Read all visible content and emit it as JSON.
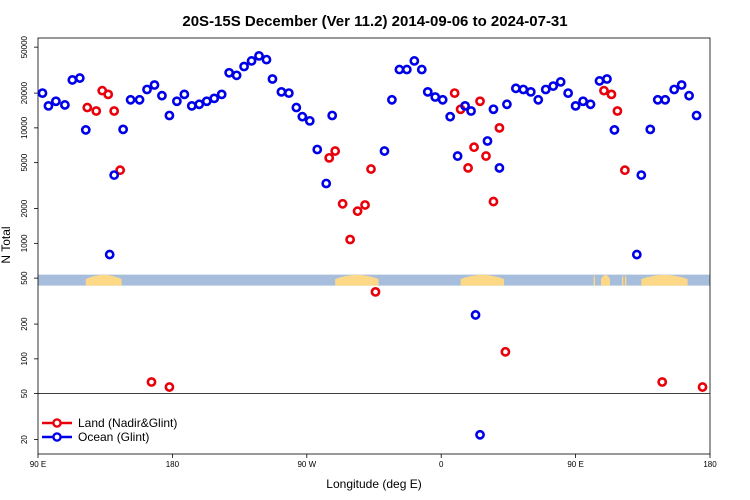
{
  "chart_data": {
    "type": "scatter",
    "title": "20S-15S December (Ver 11.2)   2014-09-06 to 2024-07-31",
    "xlabel": "Longitude (deg E)",
    "ylabel": "N Total",
    "y_scale": "log",
    "xlim": [
      90,
      540
    ],
    "ylim": [
      15,
      60000
    ],
    "x_ticks": [
      {
        "value": 90,
        "label": "90 E"
      },
      {
        "value": 180,
        "label": "180"
      },
      {
        "value": 270,
        "label": "90 W"
      },
      {
        "value": 360,
        "label": "0"
      },
      {
        "value": 450,
        "label": "90 E"
      },
      {
        "value": 540,
        "label": "180"
      }
    ],
    "y_ticks": [
      20,
      50,
      100,
      200,
      500,
      1000,
      2000,
      5000,
      10000,
      20000,
      50000
    ],
    "grid": false,
    "legend_position": "bottom-left",
    "land_strip_threshold": 500,
    "land_bands": [
      [
        122,
        146
      ],
      [
        289,
        318
      ],
      [
        373,
        402
      ],
      [
        462,
        463
      ],
      [
        467,
        473
      ],
      [
        481,
        482
      ],
      [
        483,
        484
      ],
      [
        494,
        525
      ]
    ],
    "series": [
      {
        "name": "Land (Nadir&Glint)",
        "color": "#e8000b",
        "points": [
          [
            123,
            15000
          ],
          [
            129,
            14000
          ],
          [
            133,
            21000
          ],
          [
            137,
            19500
          ],
          [
            141,
            14000
          ],
          [
            145,
            4300
          ],
          [
            166,
            63
          ],
          [
            178,
            57
          ],
          [
            285,
            5500
          ],
          [
            289,
            6300
          ],
          [
            294,
            2200
          ],
          [
            299,
            1080
          ],
          [
            304,
            1900
          ],
          [
            309,
            2150
          ],
          [
            313,
            4400
          ],
          [
            316,
            380
          ],
          [
            369,
            20000
          ],
          [
            373,
            14500
          ],
          [
            378,
            4500
          ],
          [
            382,
            6800
          ],
          [
            386,
            17000
          ],
          [
            390,
            5700
          ],
          [
            395,
            2300
          ],
          [
            399,
            10000
          ],
          [
            403,
            115
          ],
          [
            469,
            21000
          ],
          [
            474,
            19500
          ],
          [
            478,
            14000
          ],
          [
            483,
            4300
          ],
          [
            508,
            63
          ],
          [
            535,
            57
          ]
        ]
      },
      {
        "name": "Ocean (Glint)",
        "color": "#0000e8",
        "points": [
          [
            93,
            20000
          ],
          [
            97,
            15500
          ],
          [
            102,
            17000
          ],
          [
            108,
            15800
          ],
          [
            113,
            26000
          ],
          [
            118,
            27000
          ],
          [
            122,
            9600
          ],
          [
            138,
            800
          ],
          [
            141,
            3900
          ],
          [
            147,
            9700
          ],
          [
            152,
            17500
          ],
          [
            158,
            17500
          ],
          [
            163,
            21500
          ],
          [
            168,
            23500
          ],
          [
            173,
            19000
          ],
          [
            178,
            12800
          ],
          [
            183,
            17000
          ],
          [
            188,
            19500
          ],
          [
            193,
            15500
          ],
          [
            198,
            16000
          ],
          [
            203,
            17000
          ],
          [
            208,
            18000
          ],
          [
            213,
            19500
          ],
          [
            218,
            30000
          ],
          [
            223,
            28500
          ],
          [
            228,
            34000
          ],
          [
            233,
            38000
          ],
          [
            238,
            42000
          ],
          [
            243,
            39000
          ],
          [
            247,
            26500
          ],
          [
            253,
            20500
          ],
          [
            258,
            20000
          ],
          [
            263,
            15000
          ],
          [
            267,
            12500
          ],
          [
            272,
            11500
          ],
          [
            277,
            6500
          ],
          [
            283,
            3300
          ],
          [
            287,
            12800
          ],
          [
            322,
            6300
          ],
          [
            327,
            17500
          ],
          [
            332,
            32000
          ],
          [
            337,
            32000
          ],
          [
            342,
            38000
          ],
          [
            347,
            32000
          ],
          [
            351,
            20500
          ],
          [
            356,
            18500
          ],
          [
            361,
            17500
          ],
          [
            366,
            12500
          ],
          [
            371,
            5700
          ],
          [
            376,
            15500
          ],
          [
            380,
            14000
          ],
          [
            383,
            240
          ],
          [
            386,
            22
          ],
          [
            391,
            7700
          ],
          [
            395,
            14500
          ],
          [
            399,
            4500
          ],
          [
            404,
            16000
          ],
          [
            410,
            22000
          ],
          [
            415,
            21500
          ],
          [
            420,
            20500
          ],
          [
            425,
            17500
          ],
          [
            430,
            21500
          ],
          [
            435,
            23000
          ],
          [
            440,
            25000
          ],
          [
            445,
            20000
          ],
          [
            450,
            15500
          ],
          [
            455,
            17000
          ],
          [
            460,
            16000
          ],
          [
            466,
            25500
          ],
          [
            471,
            26500
          ],
          [
            476,
            9600
          ],
          [
            491,
            800
          ],
          [
            494,
            3900
          ],
          [
            500,
            9700
          ],
          [
            505,
            17500
          ],
          [
            510,
            17500
          ],
          [
            516,
            21500
          ],
          [
            521,
            23500
          ],
          [
            526,
            19000
          ],
          [
            531,
            12800
          ]
        ]
      }
    ]
  }
}
